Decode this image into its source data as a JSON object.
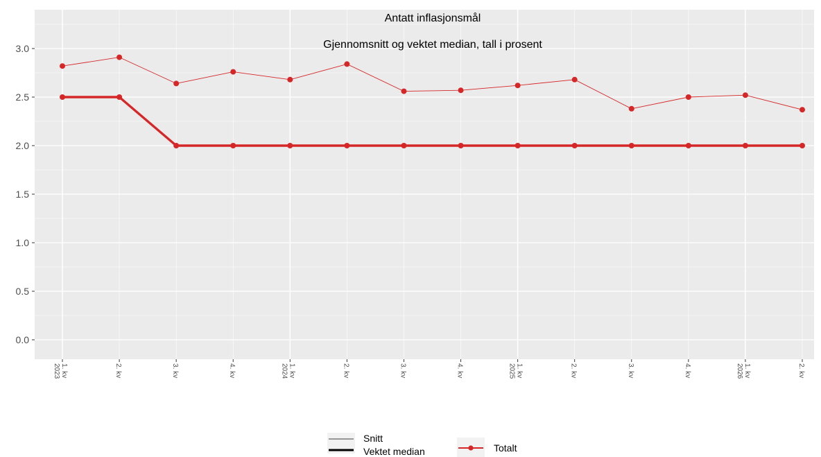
{
  "chart_data": {
    "type": "line",
    "title": "Antatt inflasjonsmål",
    "subtitle": "Gjennomsnitt og vektet median, tall i prosent",
    "xlabel": "",
    "ylabel": "",
    "ylim": [
      -0.2,
      3.4
    ],
    "yticks": [
      0.0,
      0.5,
      1.0,
      1.5,
      2.0,
      2.5,
      3.0
    ],
    "ytick_labels": [
      "0.0",
      "0.5",
      "1.0",
      "1.5",
      "2.0",
      "2.5",
      "3.0"
    ],
    "categories": [
      [
        "1. kv",
        "2023"
      ],
      [
        "2. kv"
      ],
      [
        "3. kv"
      ],
      [
        "4. kv"
      ],
      [
        "1. kv",
        "2024"
      ],
      [
        "2. kv"
      ],
      [
        "3. kv"
      ],
      [
        "4. kv"
      ],
      [
        "1. kv",
        "2025"
      ],
      [
        "2. kv"
      ],
      [
        "3. kv"
      ],
      [
        "4. kv"
      ],
      [
        "1. kv",
        "2026"
      ],
      [
        "2. kv"
      ]
    ],
    "series": [
      {
        "name": "Totalt",
        "measure": "Snitt",
        "color": "#d62728",
        "values": [
          2.82,
          2.91,
          2.64,
          2.76,
          2.68,
          2.84,
          2.56,
          2.57,
          2.62,
          2.68,
          2.38,
          2.5,
          2.52,
          2.37
        ]
      },
      {
        "name": "Totalt",
        "measure": "Vektet median",
        "color": "#d62728",
        "values": [
          2.5,
          2.5,
          2.0,
          2.0,
          2.0,
          2.0,
          2.0,
          2.0,
          2.0,
          2.0,
          2.0,
          2.0,
          2.0,
          2.0
        ]
      }
    ],
    "grid": true,
    "panel_background": "#ebebeb",
    "legend": {
      "placement": "bottom",
      "linetype_entries": [
        "Snitt",
        "Vektet median"
      ],
      "color_entries": [
        "Totalt"
      ]
    }
  }
}
